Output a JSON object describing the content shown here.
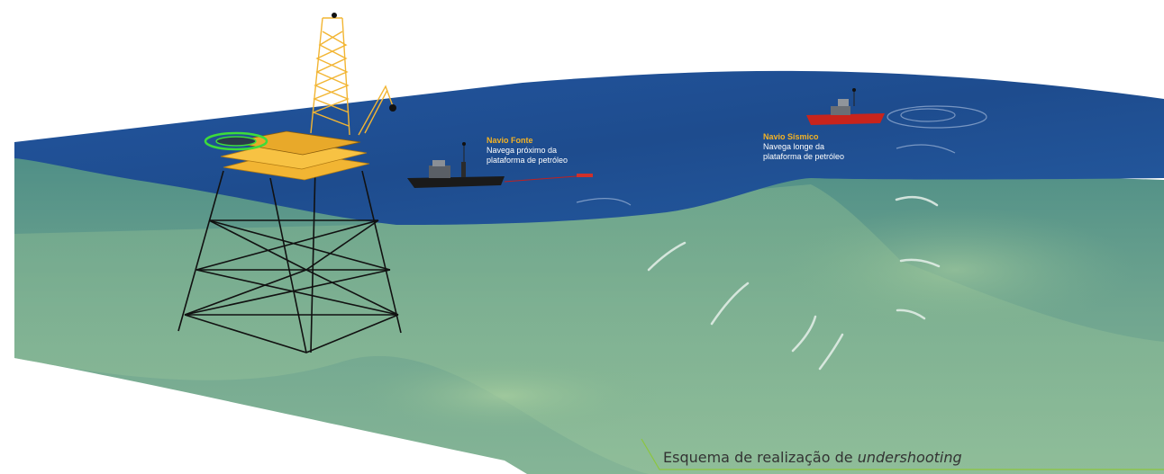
{
  "labels": {
    "source_ship": {
      "title": "Navio Fonte",
      "line1": "Navega próximo da",
      "line2": "plataforma de petróleo"
    },
    "seismic_ship": {
      "title": "Navio Sísmico",
      "line1": "Navega longe da",
      "line2": "plataforma de petróleo"
    }
  },
  "caption": {
    "text": "Esquema de realização de ",
    "emphasis": "undershooting"
  },
  "colors": {
    "sea_surface": "#1e4c8e",
    "water_body": "#6fa58f",
    "seabed": "#8fbf96",
    "platform_deck": "#f2b533",
    "helipad": "#3ddc3a",
    "source_ship": "#1a1a1a",
    "seismic_ship": "#c8241c",
    "caption_line": "#8cc63f",
    "label_title": "#f4b324"
  }
}
